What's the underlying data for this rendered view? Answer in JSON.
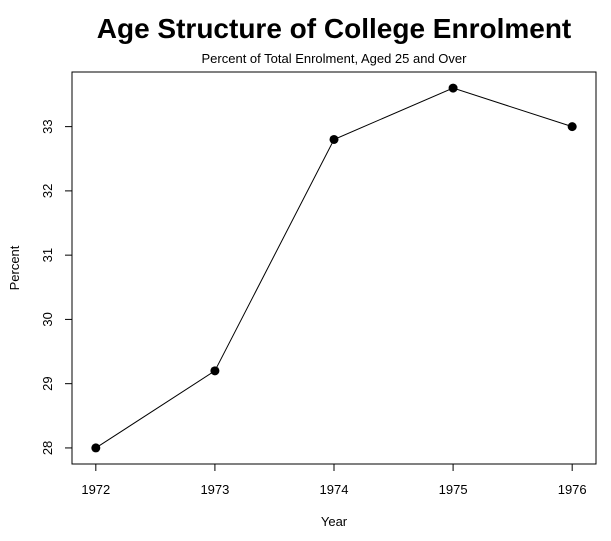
{
  "chart_data": {
    "type": "line",
    "title": "Age Structure of College Enrolment",
    "subtitle": "Percent of Total Enrolment, Aged 25 and Over",
    "xlabel": "Year",
    "ylabel": "Percent",
    "x": [
      1972,
      1973,
      1974,
      1975,
      1976
    ],
    "series": [
      {
        "values": [
          28.0,
          29.2,
          32.8,
          33.6,
          33.0
        ]
      }
    ],
    "xticks": [
      "1972",
      "1973",
      "1974",
      "1975",
      "1976"
    ],
    "yticks": [
      "28",
      "29",
      "30",
      "31",
      "32",
      "33"
    ],
    "xlim": [
      1971.8,
      1976.2
    ],
    "ylim": [
      27.75,
      33.85
    ],
    "grid": false,
    "legend": "none",
    "line_color": "#000000",
    "marker": "filled-circle"
  }
}
